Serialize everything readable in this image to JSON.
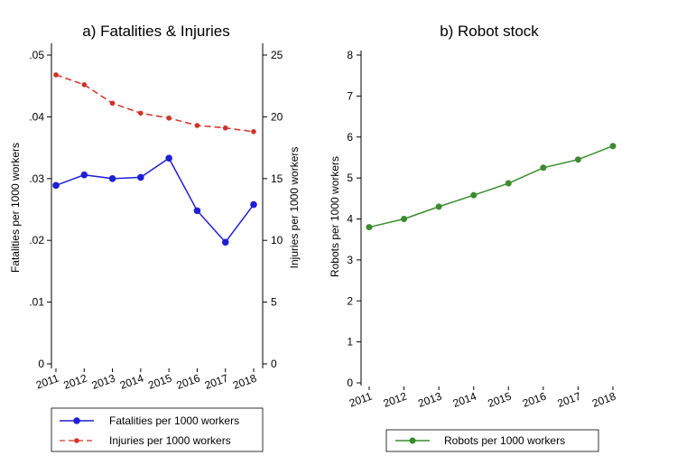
{
  "chart_data": [
    {
      "type": "line",
      "title": "a) Fatalities & Injuries",
      "x": [
        "2011",
        "2012",
        "2013",
        "2014",
        "2015",
        "2016",
        "2017",
        "2018"
      ],
      "xticks": [
        "2011",
        "2012",
        "2013",
        "2014",
        "2015",
        "2016",
        "2017",
        "2018"
      ],
      "ylabel": "Fatalities per 1000 workers",
      "ylim": [
        0,
        0.05
      ],
      "yticks": [
        ".05",
        ".04",
        ".03",
        ".02",
        ".01",
        "0"
      ],
      "y2label": "Injuries per 1000 workers",
      "y2lim": [
        0,
        25
      ],
      "y2ticks": [
        "25",
        "20",
        "15",
        "10",
        "5",
        "0"
      ],
      "grid": false,
      "legend_position": "bottom",
      "series": [
        {
          "name": "Fatalities per 1000 workers",
          "axis": "left",
          "color": "#1f1fd6",
          "dash": "solid",
          "values": [
            0.0289,
            0.0306,
            0.03,
            0.0302,
            0.0333,
            0.0248,
            0.0197,
            0.0258
          ]
        },
        {
          "name": "Injuries per 1000 workers",
          "axis": "right",
          "color": "#d03228",
          "dash": "dashed",
          "values": [
            23.4,
            22.6,
            21.1,
            20.3,
            19.9,
            19.3,
            19.1,
            18.8
          ]
        }
      ]
    },
    {
      "type": "line",
      "title": "b) Robot stock",
      "x": [
        "2011",
        "2012",
        "2013",
        "2014",
        "2015",
        "2016",
        "2017",
        "2018"
      ],
      "xticks": [
        "2011",
        "2012",
        "2013",
        "2014",
        "2015",
        "2016",
        "2017",
        "2018"
      ],
      "ylabel": "Robots per 1000 workers",
      "ylim": [
        0,
        8
      ],
      "yticks": [
        "8",
        "7",
        "6",
        "5",
        "4",
        "3",
        "2",
        "1",
        "0"
      ],
      "grid": false,
      "legend_position": "bottom",
      "series": [
        {
          "name": "Robots per 1000 workers",
          "axis": "left",
          "color": "#3a8c2e",
          "dash": "solid",
          "values": [
            3.8,
            4.0,
            4.3,
            4.58,
            4.87,
            5.25,
            5.45,
            5.78
          ]
        }
      ]
    }
  ]
}
